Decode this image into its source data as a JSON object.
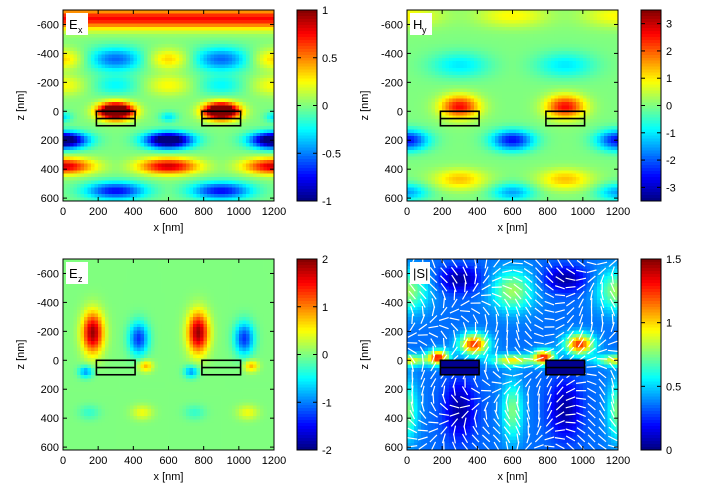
{
  "chart_data": [
    {
      "type": "heatmap",
      "field_label": "E",
      "field_subscript": "x",
      "xlabel": "x [nm]",
      "ylabel": "z [nm]",
      "xlim": [
        0,
        1200
      ],
      "ylim": [
        -700,
        620
      ],
      "xticks": [
        0,
        200,
        400,
        600,
        800,
        1000,
        1200
      ],
      "yticks": [
        -600,
        -400,
        -200,
        0,
        200,
        400,
        600
      ],
      "colorbar": {
        "min": -1,
        "max": 1,
        "ticks": [
          -1,
          -0.5,
          0,
          0.5,
          1
        ],
        "tick_labels": [
          "-1",
          "-0.5",
          "0",
          "0.5",
          "1"
        ]
      },
      "colormap": "jet",
      "structures": [
        {
          "x": [
            190,
            410
          ],
          "z": [
            0,
            100
          ],
          "divider_z": 50
        },
        {
          "x": [
            790,
            1010
          ],
          "z": [
            0,
            100
          ],
          "divider_z": 50
        }
      ],
      "field_samples": [
        {
          "x": 0,
          "z": -640,
          "value": 0.6
        },
        {
          "x": 600,
          "z": -640,
          "value": 0.7
        },
        {
          "x": 300,
          "z": -360,
          "value": -0.5
        },
        {
          "x": 900,
          "z": -360,
          "value": -0.5
        },
        {
          "x": 300,
          "z": 0,
          "value": 0.9
        },
        {
          "x": 600,
          "z": 200,
          "value": -0.8
        },
        {
          "x": 600,
          "z": 400,
          "value": 0.9
        },
        {
          "x": 300,
          "z": 540,
          "value": -0.8
        }
      ]
    },
    {
      "type": "heatmap",
      "field_label": "H",
      "field_subscript": "y",
      "xlabel": "x [nm]",
      "ylabel": "z [nm]",
      "xlim": [
        0,
        1200
      ],
      "ylim": [
        -700,
        620
      ],
      "xticks": [
        0,
        200,
        400,
        600,
        800,
        1000,
        1200
      ],
      "yticks": [
        -600,
        -400,
        -200,
        0,
        200,
        400,
        600
      ],
      "colorbar": {
        "min": -3.5,
        "max": 3.5,
        "ticks": [
          -3,
          -2,
          -1,
          0,
          1,
          2,
          3
        ],
        "tick_labels": [
          "-3",
          "-2",
          "-1",
          "0",
          "1",
          "2",
          "3"
        ]
      },
      "colormap": "jet",
      "structures": [
        {
          "x": [
            190,
            410
          ],
          "z": [
            0,
            100
          ],
          "divider_z": 50
        },
        {
          "x": [
            790,
            1010
          ],
          "z": [
            0,
            100
          ],
          "divider_z": 50
        }
      ],
      "field_samples": [
        {
          "x": 600,
          "z": -640,
          "value": 0.8
        },
        {
          "x": 300,
          "z": -300,
          "value": -1.0
        },
        {
          "x": 300,
          "z": 0,
          "value": 2.5
        },
        {
          "x": 600,
          "z": 200,
          "value": -2.5
        },
        {
          "x": 300,
          "z": 460,
          "value": 1.4
        },
        {
          "x": 600,
          "z": 560,
          "value": -1.5
        }
      ]
    },
    {
      "type": "heatmap",
      "field_label": "E",
      "field_subscript": "z",
      "xlabel": "x [nm]",
      "ylabel": "z [nm]",
      "xlim": [
        0,
        1200
      ],
      "ylim": [
        -700,
        620
      ],
      "xticks": [
        0,
        200,
        400,
        600,
        800,
        1000,
        1200
      ],
      "yticks": [
        -600,
        -400,
        -200,
        0,
        200,
        400,
        600
      ],
      "colorbar": {
        "min": -2,
        "max": 2,
        "ticks": [
          -2,
          -1,
          0,
          1,
          2
        ],
        "tick_labels": [
          "-2",
          "-1",
          "0",
          "1",
          "2"
        ]
      },
      "colormap": "jet",
      "structures": [
        {
          "x": [
            190,
            410
          ],
          "z": [
            0,
            100
          ],
          "divider_z": 50
        },
        {
          "x": [
            790,
            1010
          ],
          "z": [
            0,
            100
          ],
          "divider_z": 50
        }
      ],
      "field_samples": [
        {
          "x": 180,
          "z": -180,
          "value": 1.8
        },
        {
          "x": 420,
          "z": -180,
          "value": -1.4
        },
        {
          "x": 780,
          "z": -180,
          "value": 1.8
        },
        {
          "x": 1020,
          "z": -180,
          "value": -1.4
        },
        {
          "x": 450,
          "z": 360,
          "value": 0.4
        },
        {
          "x": 150,
          "z": 360,
          "value": -0.3
        }
      ]
    },
    {
      "type": "heatmap",
      "field_label": "|S|",
      "xlabel": "x [nm]",
      "ylabel": "z [nm]",
      "xlim": [
        0,
        1200
      ],
      "ylim": [
        -700,
        620
      ],
      "xticks": [
        0,
        200,
        400,
        600,
        800,
        1000,
        1200
      ],
      "yticks": [
        -600,
        -400,
        -200,
        0,
        200,
        400,
        600
      ],
      "colorbar": {
        "min": 0,
        "max": 1.5,
        "ticks": [
          0,
          0.5,
          1,
          1.5
        ],
        "tick_labels": [
          "0",
          "0.5",
          "1",
          "1.5"
        ]
      },
      "colormap": "jet",
      "overlay": "vector arrows (white)",
      "structures": [
        {
          "x": [
            190,
            410
          ],
          "z": [
            0,
            100
          ],
          "divider_z": 50,
          "filled": true
        },
        {
          "x": [
            790,
            1010
          ],
          "z": [
            0,
            100
          ],
          "divider_z": 50,
          "filled": true
        }
      ],
      "field_samples": [
        {
          "x": 300,
          "z": -560,
          "value": 0.1
        },
        {
          "x": 600,
          "z": -480,
          "value": 0.8
        },
        {
          "x": 400,
          "z": -100,
          "value": 1.3
        },
        {
          "x": 160,
          "z": 0,
          "value": 1.5
        },
        {
          "x": 300,
          "z": 350,
          "value": 0.1
        },
        {
          "x": 600,
          "z": 350,
          "value": 0.8
        }
      ]
    }
  ]
}
